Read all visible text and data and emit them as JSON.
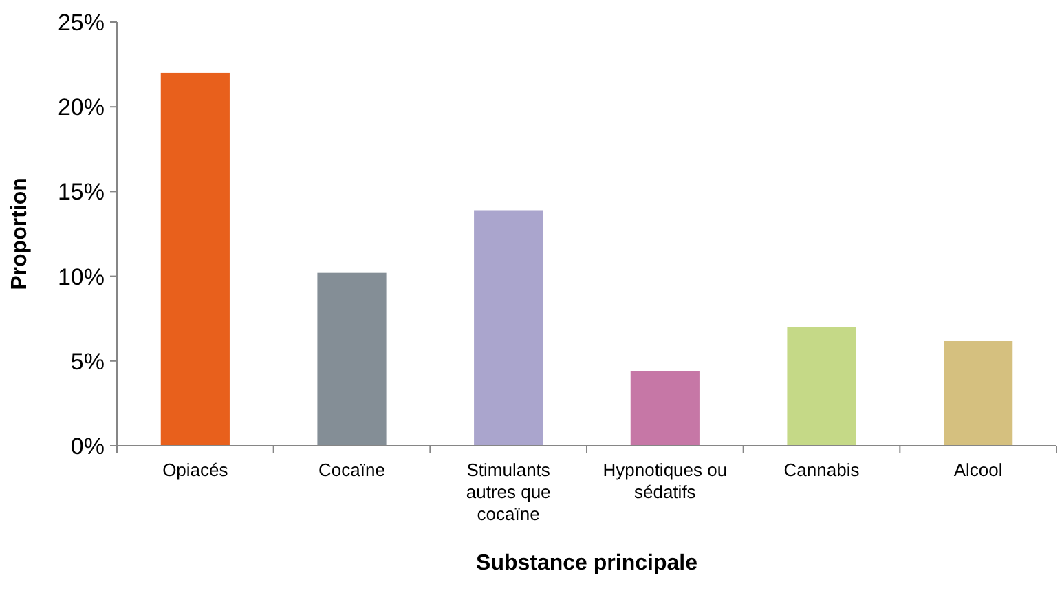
{
  "chart_data": {
    "type": "bar",
    "xlabel": "Substance principale",
    "ylabel": "Proportion",
    "categories": [
      "Opiacés",
      "Cocaïne",
      "Stimulants autres que cocaïne",
      "Hypnotiques ou sédatifs",
      "Cannabis",
      "Alcool"
    ],
    "values": [
      22,
      10.2,
      13.9,
      4.4,
      7,
      6.2
    ],
    "colors": [
      "#e8601c",
      "#848e96",
      "#aaa5cd",
      "#c677a6",
      "#c5d987",
      "#d5c07f"
    ],
    "ylim": [
      0,
      25
    ],
    "yticks": [
      {
        "value": 0,
        "label": "0%"
      },
      {
        "value": 5,
        "label": "5%"
      },
      {
        "value": 10,
        "label": "10%"
      },
      {
        "value": 15,
        "label": "15%"
      },
      {
        "value": 20,
        "label": "20%"
      },
      {
        "value": 25,
        "label": "25%"
      }
    ],
    "grid": false
  }
}
